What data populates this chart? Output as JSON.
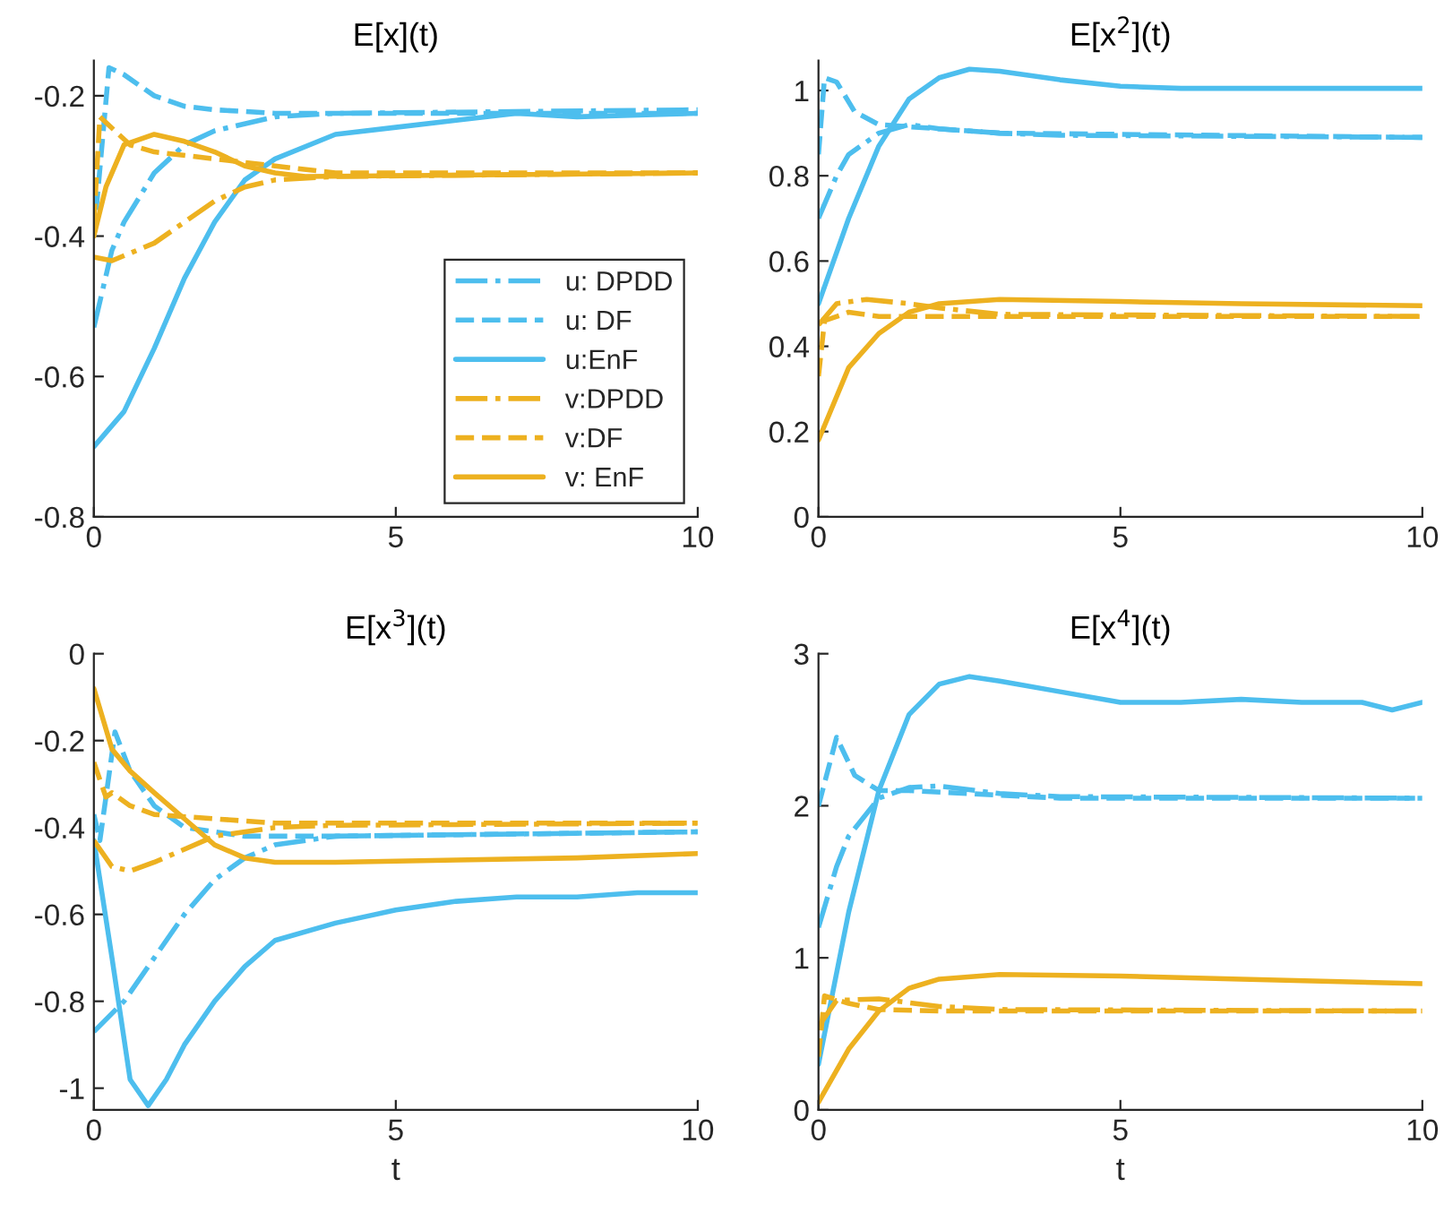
{
  "chart_data": [
    {
      "type": "line",
      "title": "E[x](t)",
      "xlim": [
        0,
        10
      ],
      "xticks": [
        0,
        5,
        10
      ],
      "ylim": [
        -0.8,
        -0.15
      ],
      "yticks": [
        -0.8,
        -0.6,
        -0.4,
        -0.2
      ],
      "grid": false,
      "legend": "bottom right",
      "series": [
        {
          "name": "u: DPDD",
          "color": "#4dbeee",
          "line_style": "dashdot",
          "x": [
            0,
            0.3,
            0.5,
            1,
            1.5,
            2,
            3,
            4,
            10
          ],
          "values": [
            -0.53,
            -0.42,
            -0.38,
            -0.31,
            -0.27,
            -0.25,
            -0.23,
            -0.225,
            -0.22
          ]
        },
        {
          "name": "u: DF",
          "color": "#4dbeee",
          "line_style": "dashed",
          "x": [
            0,
            0.25,
            0.5,
            1,
            1.5,
            2,
            3,
            10
          ],
          "values": [
            -0.4,
            -0.16,
            -0.17,
            -0.2,
            -0.215,
            -0.22,
            -0.225,
            -0.225
          ]
        },
        {
          "name": "u:EnF",
          "color": "#4dbeee",
          "line_style": "solid",
          "x": [
            0,
            0.5,
            1,
            1.5,
            2,
            2.5,
            3,
            4,
            5,
            6,
            7,
            8,
            10
          ],
          "values": [
            -0.7,
            -0.65,
            -0.56,
            -0.46,
            -0.38,
            -0.32,
            -0.29,
            -0.255,
            -0.245,
            -0.235,
            -0.225,
            -0.23,
            -0.225
          ]
        },
        {
          "name": "v:DPDD",
          "color": "#edb120",
          "line_style": "dashdot",
          "x": [
            0,
            0.3,
            1,
            1.5,
            2,
            2.5,
            3,
            4,
            10
          ],
          "values": [
            -0.43,
            -0.435,
            -0.41,
            -0.38,
            -0.35,
            -0.33,
            -0.32,
            -0.315,
            -0.31
          ]
        },
        {
          "name": "v:DF",
          "color": "#edb120",
          "line_style": "dashed",
          "x": [
            0,
            0.1,
            0.6,
            1,
            2,
            3,
            4,
            10
          ],
          "values": [
            -0.38,
            -0.23,
            -0.27,
            -0.28,
            -0.29,
            -0.3,
            -0.31,
            -0.31
          ]
        },
        {
          "name": "v: EnF",
          "color": "#edb120",
          "line_style": "solid",
          "x": [
            0,
            0.2,
            0.5,
            1,
            1.5,
            2,
            2.5,
            3,
            3.5,
            10
          ],
          "values": [
            -0.4,
            -0.33,
            -0.27,
            -0.255,
            -0.265,
            -0.28,
            -0.3,
            -0.31,
            -0.315,
            -0.31
          ]
        }
      ]
    },
    {
      "type": "line",
      "title": "E[x$^{2}$](t)",
      "xlim": [
        0,
        10
      ],
      "xticks": [
        0,
        5,
        10
      ],
      "ylim": [
        0,
        1.07
      ],
      "yticks": [
        0,
        0.2,
        0.4,
        0.6,
        0.8,
        1
      ],
      "grid": false,
      "series": [
        {
          "color": "#4dbeee",
          "line_style": "dashdot",
          "x": [
            0,
            0.3,
            0.5,
            1,
            1.5,
            2,
            3,
            4,
            10
          ],
          "values": [
            0.7,
            0.8,
            0.85,
            0.9,
            0.92,
            0.91,
            0.9,
            0.895,
            0.89
          ]
        },
        {
          "color": "#4dbeee",
          "line_style": "dashed",
          "x": [
            0,
            0.1,
            0.3,
            0.6,
            1,
            1.5,
            3,
            10
          ],
          "values": [
            0.85,
            1.03,
            1.02,
            0.95,
            0.92,
            0.915,
            0.9,
            0.89
          ]
        },
        {
          "color": "#4dbeee",
          "line_style": "solid",
          "x": [
            0,
            0.5,
            1,
            1.5,
            2,
            2.5,
            3,
            4,
            5,
            6,
            8,
            10
          ],
          "values": [
            0.5,
            0.7,
            0.87,
            0.98,
            1.03,
            1.05,
            1.045,
            1.025,
            1.01,
            1.005,
            1.005,
            1.005
          ]
        },
        {
          "color": "#edb120",
          "line_style": "dashdot",
          "x": [
            0,
            0.3,
            0.8,
            1.5,
            2,
            3,
            10
          ],
          "values": [
            0.45,
            0.5,
            0.51,
            0.5,
            0.49,
            0.475,
            0.47
          ]
        },
        {
          "color": "#edb120",
          "line_style": "dashed",
          "x": [
            0,
            0.1,
            0.5,
            1,
            2,
            10
          ],
          "values": [
            0.33,
            0.46,
            0.48,
            0.47,
            0.47,
            0.47
          ]
        },
        {
          "color": "#edb120",
          "line_style": "solid",
          "x": [
            0,
            0.5,
            1,
            1.5,
            2,
            3,
            5,
            7,
            10
          ],
          "values": [
            0.18,
            0.35,
            0.43,
            0.48,
            0.5,
            0.51,
            0.505,
            0.5,
            0.495
          ]
        }
      ]
    },
    {
      "type": "line",
      "title": "E[x$^{3}$](t)",
      "xlabel": "t",
      "xlim": [
        0,
        10
      ],
      "xticks": [
        0,
        5,
        10
      ],
      "ylim": [
        -1.05,
        0
      ],
      "yticks": [
        -1,
        -0.8,
        -0.6,
        -0.4,
        -0.2,
        0
      ],
      "grid": false,
      "series": [
        {
          "color": "#4dbeee",
          "line_style": "dashdot",
          "x": [
            0,
            0.5,
            1,
            1.5,
            2,
            2.5,
            3,
            4,
            10
          ],
          "values": [
            -0.87,
            -0.8,
            -0.7,
            -0.6,
            -0.52,
            -0.47,
            -0.44,
            -0.42,
            -0.41
          ]
        },
        {
          "color": "#4dbeee",
          "line_style": "dashed",
          "x": [
            0,
            0.1,
            0.35,
            0.6,
            1,
            1.5,
            2.5,
            4,
            10
          ],
          "values": [
            -0.37,
            -0.43,
            -0.18,
            -0.27,
            -0.35,
            -0.4,
            -0.42,
            -0.42,
            -0.41
          ]
        },
        {
          "color": "#4dbeee",
          "line_style": "solid",
          "x": [
            0,
            0.3,
            0.6,
            0.9,
            1.2,
            1.5,
            2,
            2.5,
            3,
            4,
            5,
            6,
            7,
            8,
            9,
            10
          ],
          "values": [
            -0.43,
            -0.7,
            -0.98,
            -1.04,
            -0.98,
            -0.9,
            -0.8,
            -0.72,
            -0.66,
            -0.62,
            -0.59,
            -0.57,
            -0.56,
            -0.56,
            -0.55,
            -0.55
          ]
        },
        {
          "color": "#edb120",
          "line_style": "dashdot",
          "x": [
            0,
            0.3,
            0.6,
            1,
            1.5,
            2,
            3,
            4,
            10
          ],
          "values": [
            -0.43,
            -0.49,
            -0.5,
            -0.48,
            -0.45,
            -0.42,
            -0.4,
            -0.395,
            -0.39
          ]
        },
        {
          "color": "#edb120",
          "line_style": "dashed",
          "x": [
            0,
            0.2,
            0.3,
            0.6,
            1,
            2,
            3,
            10
          ],
          "values": [
            -0.25,
            -0.33,
            -0.32,
            -0.35,
            -0.37,
            -0.38,
            -0.39,
            -0.39
          ]
        },
        {
          "color": "#edb120",
          "line_style": "solid",
          "x": [
            0,
            0.3,
            0.6,
            1,
            1.5,
            2,
            2.5,
            3,
            4,
            6,
            8,
            10
          ],
          "values": [
            -0.08,
            -0.22,
            -0.27,
            -0.32,
            -0.38,
            -0.44,
            -0.47,
            -0.48,
            -0.48,
            -0.475,
            -0.47,
            -0.46
          ]
        }
      ]
    },
    {
      "type": "line",
      "title": "E[x$^{4}$](t)",
      "xlabel": "t",
      "xlim": [
        0,
        10
      ],
      "xticks": [
        0,
        5,
        10
      ],
      "ylim": [
        0,
        3
      ],
      "yticks": [
        0,
        1,
        2,
        3
      ],
      "grid": false,
      "series": [
        {
          "color": "#4dbeee",
          "line_style": "dashdot",
          "x": [
            0,
            0.3,
            0.5,
            1,
            1.5,
            2,
            3,
            4,
            10
          ],
          "values": [
            1.2,
            1.6,
            1.8,
            2.05,
            2.12,
            2.13,
            2.08,
            2.06,
            2.05
          ]
        },
        {
          "color": "#4dbeee",
          "line_style": "dashed",
          "x": [
            0,
            0.3,
            0.6,
            1,
            1.5,
            2.5,
            4,
            10
          ],
          "values": [
            2.0,
            2.45,
            2.2,
            2.1,
            2.1,
            2.08,
            2.05,
            2.05
          ]
        },
        {
          "color": "#4dbeee",
          "line_style": "solid",
          "x": [
            0,
            0.5,
            1,
            1.5,
            2,
            2.5,
            3,
            4,
            5,
            6,
            7,
            8,
            9,
            9.5,
            10
          ],
          "values": [
            0.3,
            1.3,
            2.1,
            2.6,
            2.8,
            2.85,
            2.82,
            2.75,
            2.68,
            2.68,
            2.7,
            2.68,
            2.68,
            2.63,
            2.68
          ]
        },
        {
          "color": "#edb120",
          "line_style": "dashdot",
          "x": [
            0,
            0.3,
            1,
            2,
            3,
            10
          ],
          "values": [
            0.55,
            0.72,
            0.73,
            0.68,
            0.66,
            0.65
          ]
        },
        {
          "color": "#edb120",
          "line_style": "dashed",
          "x": [
            0,
            0.1,
            0.5,
            1,
            2,
            10
          ],
          "values": [
            0.35,
            0.75,
            0.7,
            0.66,
            0.65,
            0.65
          ]
        },
        {
          "color": "#edb120",
          "line_style": "solid",
          "x": [
            0,
            0.5,
            1,
            1.5,
            2,
            3,
            5,
            7,
            10
          ],
          "values": [
            0.05,
            0.4,
            0.65,
            0.8,
            0.86,
            0.89,
            0.88,
            0.86,
            0.83
          ]
        }
      ]
    }
  ]
}
